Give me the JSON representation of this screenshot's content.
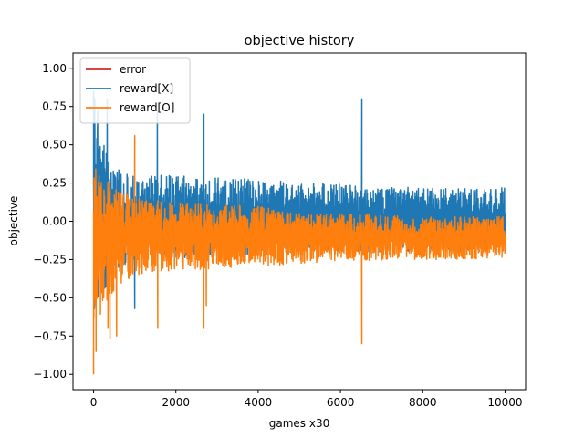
{
  "chart_data": {
    "type": "line",
    "title": "objective history",
    "xlabel": "games x30",
    "ylabel": "objective",
    "xlim": [
      -500,
      10500
    ],
    "ylim": [
      -1.1,
      1.1
    ],
    "xticks": [
      0,
      2000,
      4000,
      6000,
      8000,
      10000
    ],
    "xtick_labels": [
      "0",
      "2000",
      "4000",
      "6000",
      "8000",
      "10000"
    ],
    "yticks": [
      -1.0,
      -0.75,
      -0.5,
      -0.25,
      0.0,
      0.25,
      0.5,
      0.75,
      1.0
    ],
    "ytick_labels": [
      "−1.00",
      "−0.75",
      "−0.50",
      "−0.25",
      "0.00",
      "0.25",
      "0.50",
      "0.75",
      "1.00"
    ],
    "grid": false,
    "legend_position": "top-left",
    "colors": {
      "error": "#d62728",
      "reward_x": "#1f77b4",
      "reward_o": "#ff7f0e"
    },
    "series": [
      {
        "name": "error",
        "color": "#d62728",
        "x": [
          0,
          10000
        ],
        "y": [
          0,
          0
        ],
        "visible_in_plot": false
      },
      {
        "name": "reward[X]",
        "color": "#1f77b4",
        "x": [
          0,
          10000
        ],
        "y_mean": [
          0.05,
          0.08
        ],
        "band_upper": [
          [
            0,
            0.65
          ],
          [
            500,
            0.35
          ],
          [
            1000,
            0.3
          ],
          [
            2000,
            0.3
          ],
          [
            4000,
            0.28
          ],
          [
            5000,
            0.25
          ],
          [
            6000,
            0.25
          ],
          [
            8000,
            0.22
          ],
          [
            10000,
            0.22
          ]
        ],
        "band_lower": [
          [
            0,
            -0.6
          ],
          [
            500,
            -0.35
          ],
          [
            1000,
            -0.25
          ],
          [
            2000,
            -0.25
          ],
          [
            4000,
            -0.22
          ],
          [
            5000,
            -0.2
          ],
          [
            6000,
            -0.2
          ],
          [
            8000,
            -0.2
          ],
          [
            10000,
            -0.2
          ]
        ],
        "spikes": [
          [
            0,
            0.85
          ],
          [
            30,
            0.8
          ],
          [
            100,
            0.72
          ],
          [
            330,
            0.8
          ],
          [
            1550,
            0.72
          ],
          [
            2680,
            0.7
          ],
          [
            6520,
            0.8
          ],
          [
            1000,
            -0.57
          ]
        ]
      },
      {
        "name": "reward[O]",
        "color": "#ff7f0e",
        "x": [
          0,
          10000
        ],
        "y_mean": [
          -0.1,
          -0.1
        ],
        "band_upper": [
          [
            0,
            0.4
          ],
          [
            500,
            0.22
          ],
          [
            1000,
            0.15
          ],
          [
            2000,
            0.13
          ],
          [
            4000,
            0.1
          ],
          [
            5000,
            0.05
          ],
          [
            6000,
            0.05
          ],
          [
            8000,
            0.03
          ],
          [
            10000,
            0.03
          ]
        ],
        "band_lower": [
          [
            0,
            -0.7
          ],
          [
            500,
            -0.45
          ],
          [
            1000,
            -0.35
          ],
          [
            2000,
            -0.32
          ],
          [
            4000,
            -0.3
          ],
          [
            5000,
            -0.28
          ],
          [
            6000,
            -0.26
          ],
          [
            8000,
            -0.25
          ],
          [
            10000,
            -0.25
          ]
        ],
        "spikes": [
          [
            0,
            -1.0
          ],
          [
            60,
            -0.85
          ],
          [
            350,
            -0.7
          ],
          [
            400,
            -0.77
          ],
          [
            560,
            -0.75
          ],
          [
            1000,
            0.56
          ],
          [
            1560,
            -0.7
          ],
          [
            2680,
            -0.7
          ],
          [
            2740,
            -0.55
          ],
          [
            6520,
            -0.8
          ]
        ]
      }
    ]
  }
}
